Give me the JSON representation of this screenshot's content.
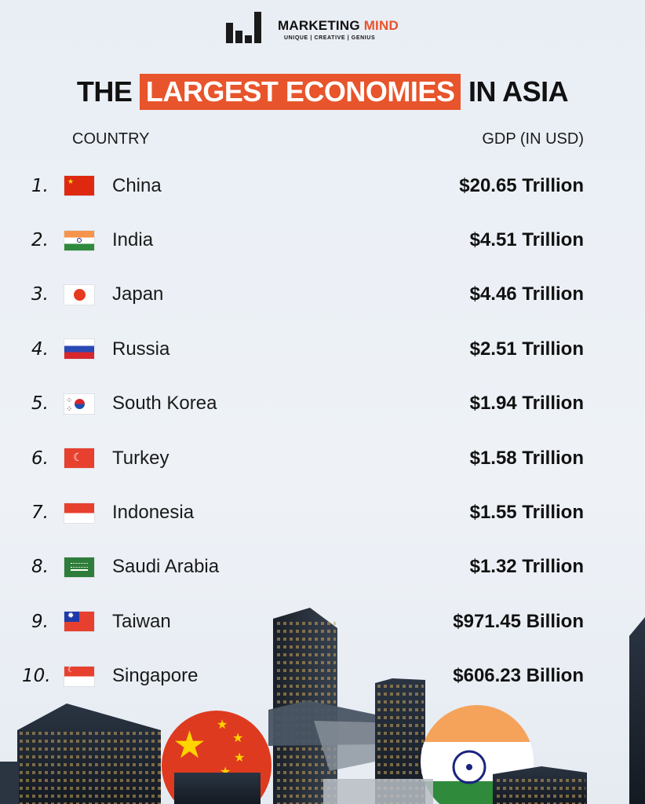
{
  "brand": {
    "name_part1": "MARKETING",
    "name_part2": "MIND",
    "tagline": "UNIQUE | CREATIVE | GENIUS"
  },
  "title": {
    "before": "THE",
    "highlight": "LARGEST ECONOMIES",
    "after": "IN ASIA"
  },
  "columns": {
    "country": "COUNTRY",
    "gdp": "GDP (IN USD)"
  },
  "accent_color": "#e8542b",
  "rows": [
    {
      "rank": "1.",
      "country": "China",
      "gdp": "$20.65 Trillion",
      "flag": "china-flag-icon"
    },
    {
      "rank": "2.",
      "country": "India",
      "gdp": "$4.51 Trillion",
      "flag": "india-flag-icon"
    },
    {
      "rank": "3.",
      "country": "Japan",
      "gdp": "$4.46 Trillion",
      "flag": "japan-flag-icon"
    },
    {
      "rank": "4.",
      "country": "Russia",
      "gdp": "$2.51 Trillion",
      "flag": "russia-flag-icon"
    },
    {
      "rank": "5.",
      "country": "South Korea",
      "gdp": "$1.94 Trillion",
      "flag": "south-korea-flag-icon"
    },
    {
      "rank": "6.",
      "country": "Turkey",
      "gdp": "$1.58 Trillion",
      "flag": "turkey-flag-icon"
    },
    {
      "rank": "7.",
      "country": "Indonesia",
      "gdp": "$1.55 Trillion",
      "flag": "indonesia-flag-icon"
    },
    {
      "rank": "8.",
      "country": "Saudi Arabia",
      "gdp": "$1.32 Trillion",
      "flag": "saudi-arabia-flag-icon"
    },
    {
      "rank": "9.",
      "country": "Taiwan",
      "gdp": "$971.45 Billion",
      "flag": "taiwan-flag-icon"
    },
    {
      "rank": "10.",
      "country": "Singapore",
      "gdp": "$606.23 Billion",
      "flag": "singapore-flag-icon"
    }
  ]
}
